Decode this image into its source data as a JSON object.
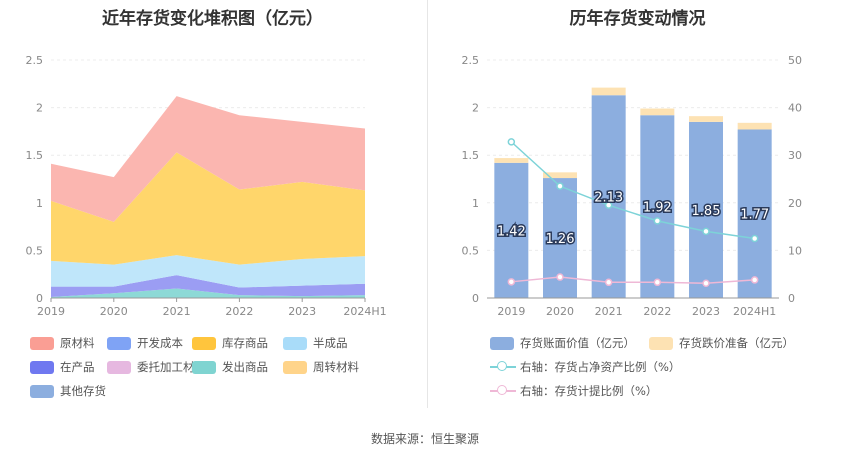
{
  "left_title": "近年存货变化堆积图（亿元）",
  "right_title": "历年存货变动情况",
  "source": "数据来源：恒生聚源",
  "chart_data": [
    {
      "type": "area",
      "stacked": true,
      "title": "近年存货变化堆积图（亿元）",
      "categories": [
        "2019",
        "2020",
        "2021",
        "2022",
        "2023",
        "2024H1"
      ],
      "ylim": [
        0,
        2.5
      ],
      "yticks": [
        "0",
        "0.5",
        "1",
        "1.5",
        "2",
        "2.5"
      ],
      "series": [
        {
          "name": "发出商品",
          "color": "#8dd9d6",
          "values": [
            0.01,
            0.05,
            0.1,
            0.03,
            0.02,
            0.03
          ]
        },
        {
          "name": "在产品",
          "color": "#9b9df3",
          "values": [
            0.11,
            0.07,
            0.14,
            0.08,
            0.11,
            0.12
          ]
        },
        {
          "name": "半成品",
          "color": "#bfe6fa",
          "values": [
            0.27,
            0.23,
            0.21,
            0.24,
            0.28,
            0.29
          ]
        },
        {
          "name": "库存商品",
          "color": "#ffd66b",
          "values": [
            0.63,
            0.45,
            1.08,
            0.79,
            0.81,
            0.69
          ]
        },
        {
          "name": "原材料",
          "color": "#fbb6b0",
          "values": [
            0.39,
            0.47,
            0.59,
            0.78,
            0.63,
            0.65
          ]
        }
      ],
      "legend": [
        {
          "name": "原材料",
          "color": "#fa9e94"
        },
        {
          "name": "开发成本",
          "color": "#7fa3f5"
        },
        {
          "name": "库存商品",
          "color": "#ffc53d"
        },
        {
          "name": "半成品",
          "color": "#a9dcf9"
        },
        {
          "name": "在产品",
          "color": "#6f78f0"
        },
        {
          "name": "委托加工材料",
          "color": "#e6b8e0"
        },
        {
          "name": "发出商品",
          "color": "#7fd4d1"
        },
        {
          "name": "周转材料",
          "color": "#ffd48a"
        },
        {
          "name": "其他存货",
          "color": "#8caedf"
        }
      ]
    },
    {
      "type": "bar",
      "title": "历年存货变动情况",
      "categories": [
        "2019",
        "2020",
        "2021",
        "2022",
        "2023",
        "2024H1"
      ],
      "ylim": [
        0,
        2.5
      ],
      "yticks": [
        "0",
        "0.5",
        "1",
        "1.5",
        "2",
        "2.5"
      ],
      "y2lim": [
        0,
        50
      ],
      "y2ticks": [
        "0",
        "10",
        "20",
        "30",
        "40",
        "50"
      ],
      "series": [
        {
          "name": "存货账面价值（亿元）",
          "type": "bar",
          "color": "#8caedf",
          "values": [
            1.42,
            1.26,
            2.13,
            1.92,
            1.85,
            1.77
          ],
          "labels": [
            "1.42",
            "1.26",
            "2.13",
            "1.92",
            "1.85",
            "1.77"
          ]
        },
        {
          "name": "存货跌价准备（亿元）",
          "type": "bar",
          "color": "#fde2b3",
          "values": [
            0.05,
            0.06,
            0.08,
            0.07,
            0.06,
            0.07
          ]
        },
        {
          "name": "右轴：存货占净资产比例（%）",
          "type": "line",
          "axis": "right",
          "color": "#7dd3d8",
          "values": [
            32.8,
            23.5,
            19.5,
            16.2,
            14.0,
            12.5
          ]
        },
        {
          "name": "右轴：存货计提比例（%）",
          "type": "line",
          "axis": "right",
          "color": "#efb8d6",
          "values": [
            3.4,
            4.4,
            3.3,
            3.3,
            3.1,
            3.8
          ]
        }
      ]
    }
  ]
}
